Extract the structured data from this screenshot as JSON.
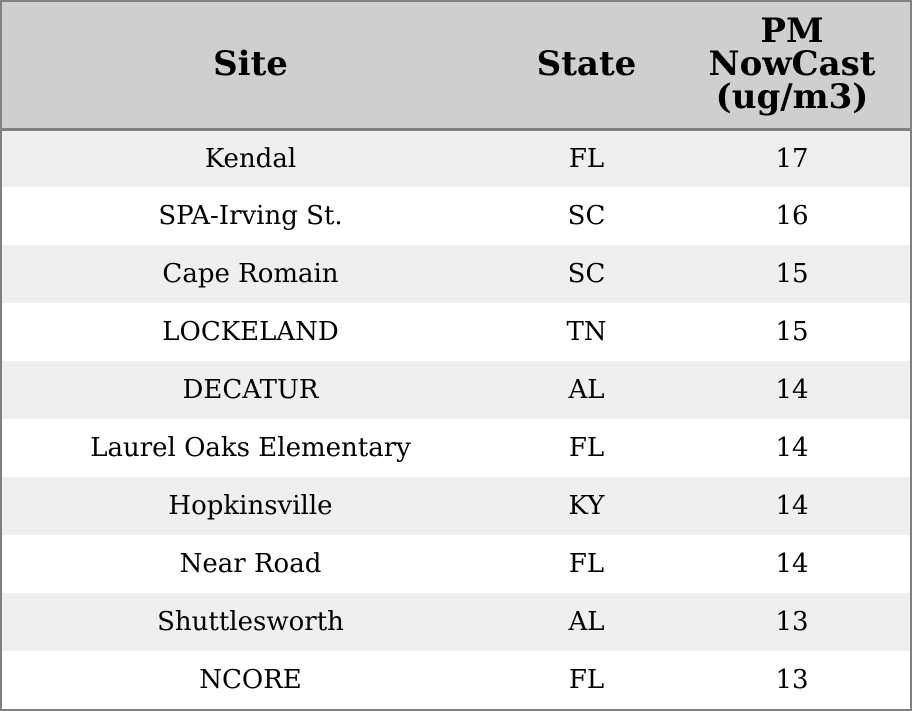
{
  "chart_data": {
    "type": "table",
    "columns": [
      "Site",
      "State",
      "PM NowCast (ug/m3)"
    ],
    "header_lines": {
      "site": [
        "Site"
      ],
      "state": [
        "State"
      ],
      "pm": [
        "PM",
        "NowCast",
        "(ug/m3)"
      ]
    },
    "rows": [
      {
        "site": "Kendal",
        "state": "FL",
        "pm": "17"
      },
      {
        "site": "SPA-Irving St.",
        "state": "SC",
        "pm": "16"
      },
      {
        "site": "Cape Romain",
        "state": "SC",
        "pm": "15"
      },
      {
        "site": "LOCKELAND",
        "state": "TN",
        "pm": "15"
      },
      {
        "site": "DECATUR",
        "state": "AL",
        "pm": "14"
      },
      {
        "site": "Laurel Oaks Elementary",
        "state": "FL",
        "pm": "14"
      },
      {
        "site": "Hopkinsville",
        "state": "KY",
        "pm": "14"
      },
      {
        "site": "Near Road",
        "state": "FL",
        "pm": "14"
      },
      {
        "site": "Shuttlesworth",
        "state": "AL",
        "pm": "13"
      },
      {
        "site": "NCORE",
        "state": "FL",
        "pm": "13"
      }
    ]
  },
  "colors": {
    "header_bg": "#cfcfcf",
    "row_alt_bg": "#efefef",
    "row_bg": "#ffffff",
    "border": "#808080"
  }
}
